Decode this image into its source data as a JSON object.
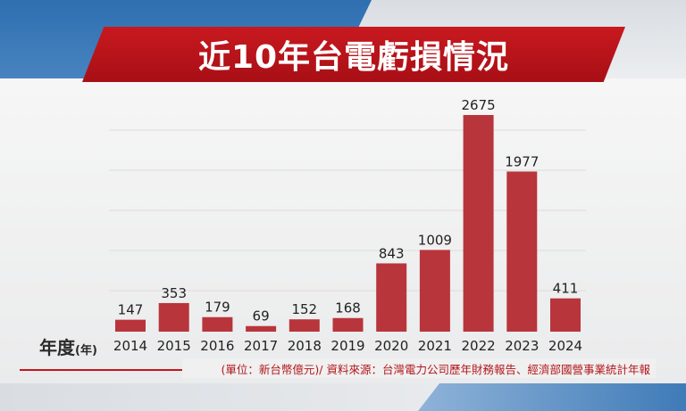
{
  "title": "近10年台電虧損情況",
  "x_axis_prefix": "年度",
  "x_axis_unit": "(年)",
  "source_note": "(單位：新台幣億元)/ 資料來源：台灣電力公司歷年財務報告、經濟部國營事業統計年報",
  "colors": {
    "bar": "#b8353b",
    "banner": "#c8191f",
    "accent_text": "#b2171c"
  },
  "chart_data": {
    "type": "bar",
    "title": "近10年台電虧損情況",
    "categories": [
      "2014",
      "2015",
      "2016",
      "2017",
      "2018",
      "2019",
      "2020",
      "2021",
      "2022",
      "2023",
      "2024"
    ],
    "values": [
      147,
      353,
      179,
      69,
      152,
      168,
      843,
      1009,
      2675,
      1977,
      411
    ],
    "xlabel": "年度(年)",
    "ylabel": "",
    "ylim": [
      0,
      2675
    ],
    "grid": true,
    "legend": "none"
  }
}
